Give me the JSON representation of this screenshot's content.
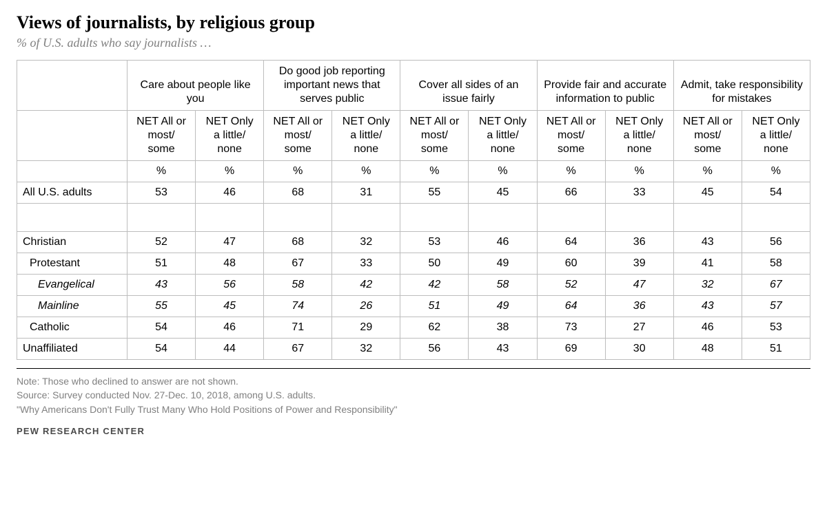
{
  "header": {
    "title": "Views of journalists, by religious group",
    "subtitle": "% of U.S. adults who say journalists …"
  },
  "table": {
    "type": "table",
    "column_groups": [
      "Care about people like you",
      "Do good job reporting important news that serves public",
      "Cover all sides of an issue fairly",
      "Provide fair and accurate information to public",
      "Admit, take responsibility for mistakes"
    ],
    "sub_headers": {
      "net_all": "NET All or most/ some",
      "net_only": "NET Only a little/ none"
    },
    "unit_label": "%",
    "rows": [
      {
        "label": "All U.S. adults",
        "indent": 0,
        "italic": false,
        "values": [
          53,
          46,
          68,
          31,
          55,
          45,
          66,
          33,
          45,
          54
        ]
      },
      {
        "label": "Christian",
        "indent": 0,
        "italic": false,
        "values": [
          52,
          47,
          68,
          32,
          53,
          46,
          64,
          36,
          43,
          56
        ]
      },
      {
        "label": "Protestant",
        "indent": 1,
        "italic": false,
        "values": [
          51,
          48,
          67,
          33,
          50,
          49,
          60,
          39,
          41,
          58
        ]
      },
      {
        "label": "Evangelical",
        "indent": 2,
        "italic": true,
        "values": [
          43,
          56,
          58,
          42,
          42,
          58,
          52,
          47,
          32,
          67
        ]
      },
      {
        "label": "Mainline",
        "indent": 2,
        "italic": true,
        "values": [
          55,
          45,
          74,
          26,
          51,
          49,
          64,
          36,
          43,
          57
        ]
      },
      {
        "label": "Catholic",
        "indent": 1,
        "italic": false,
        "values": [
          54,
          46,
          71,
          29,
          62,
          38,
          73,
          27,
          46,
          53
        ]
      },
      {
        "label": "Unaffiliated",
        "indent": 0,
        "italic": false,
        "values": [
          54,
          44,
          67,
          32,
          56,
          43,
          69,
          30,
          48,
          51
        ]
      }
    ],
    "styling": {
      "border_color": "#bdbdbd",
      "header_font": "Arial",
      "body_font": "Arial",
      "title_font": "Georgia",
      "text_color": "#000000",
      "muted_text_color": "#808080",
      "background_color": "#ffffff",
      "title_fontsize_pt": 20,
      "subtitle_fontsize_pt": 14,
      "body_fontsize_pt": 12,
      "notes_fontsize_pt": 10
    }
  },
  "notes": {
    "line1": "Note: Those who declined to answer are not shown.",
    "line2": "Source: Survey conducted Nov. 27-Dec. 10, 2018, among U.S. adults.",
    "line3": "\"Why Americans Don't Fully Trust Many Who Hold Positions of Power and Responsibility\""
  },
  "footer": {
    "source_tag": "PEW RESEARCH CENTER"
  }
}
